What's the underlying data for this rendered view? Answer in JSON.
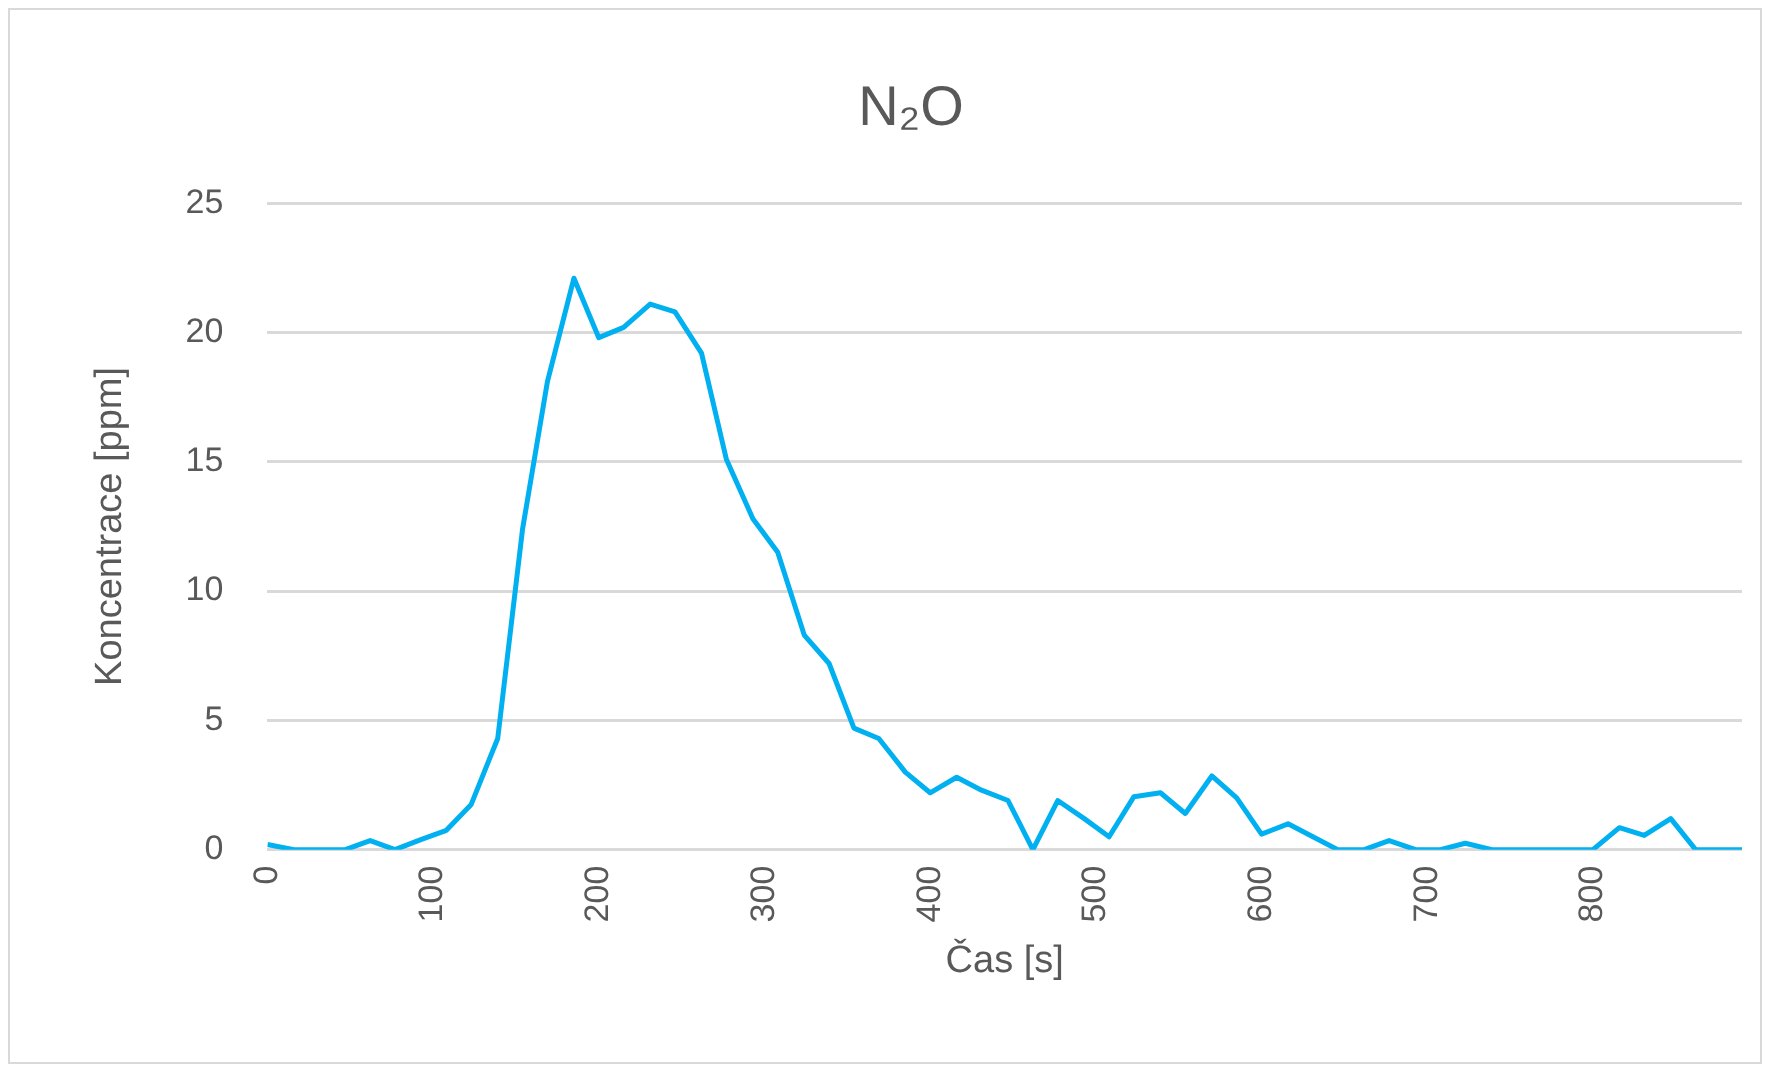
{
  "chart_data": {
    "type": "line",
    "title": "N₂O",
    "xlabel": "Čas [s]",
    "ylabel": "Koncentrace [ppm]",
    "x": [
      0,
      16,
      32,
      47,
      62,
      77,
      93,
      108,
      123,
      139,
      154,
      169,
      185,
      200,
      215,
      231,
      246,
      262,
      277,
      293,
      308,
      324,
      339,
      354,
      369,
      385,
      400,
      416,
      431,
      447,
      462,
      477,
      493,
      508,
      523,
      539,
      554,
      570,
      585,
      600,
      616,
      631,
      646,
      662,
      677,
      693,
      708,
      723,
      739,
      754,
      770,
      785,
      800,
      816,
      831,
      847,
      862,
      877,
      890
    ],
    "series": [
      {
        "color": "#00b0f0",
        "values": [
          0.2,
          0,
          0,
          0,
          0.35,
          0,
          0.4,
          0.75,
          1.75,
          4.3,
          12.4,
          18.1,
          22.1,
          19.8,
          20.2,
          21.1,
          20.8,
          19.2,
          15.1,
          12.8,
          11.5,
          8.3,
          7.2,
          4.7,
          4.3,
          3.0,
          2.2,
          2.8,
          2.3,
          1.9,
          0,
          1.9,
          1.2,
          0.5,
          2.05,
          2.2,
          1.4,
          2.85,
          2.0,
          0.6,
          1.0,
          0.5,
          0,
          0,
          0.35,
          0,
          0,
          0.25,
          0,
          0,
          0,
          0,
          0,
          0.85,
          0.55,
          1.2,
          0,
          0,
          0
        ]
      }
    ],
    "xlim": [
      0,
      890
    ],
    "xticks": [
      0,
      100,
      200,
      300,
      400,
      500,
      600,
      700,
      800
    ],
    "ylim": [
      0,
      25
    ],
    "yticks": [
      0,
      5,
      10,
      15,
      20,
      25
    ],
    "grid": "y",
    "legend": false,
    "marker": "none",
    "line_style": "solid"
  }
}
